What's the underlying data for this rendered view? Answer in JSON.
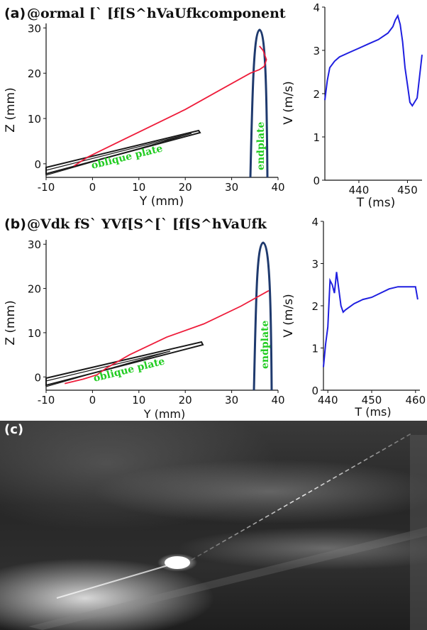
{
  "panel_a": {
    "label": "(a)",
    "title": "@ormal [` [f[S^hVaUfkcomponent",
    "traj": {
      "xlabel": "Y (mm)",
      "ylabel": "Z (mm)",
      "xticks": [
        "-10",
        "0",
        "10",
        "20",
        "30",
        "40"
      ],
      "yticks": [
        "0",
        "10",
        "20",
        "30"
      ],
      "oblique_label": "oblique plate",
      "endplate_label": "endplate"
    },
    "vel": {
      "xlabel": "T (ms)",
      "ylabel": "V (m/s)",
      "xticks": [
        "440",
        "450"
      ],
      "yticks": [
        "0",
        "1",
        "2",
        "3",
        "4"
      ]
    }
  },
  "panel_b": {
    "label": "(b)",
    "title": "@Vdk fS` YVf[S^[` [f[S^hVaUfk",
    "traj": {
      "xlabel": "Y (mm)",
      "ylabel": "Z (mm)",
      "xticks": [
        "-10",
        "0",
        "10",
        "20",
        "30",
        "40"
      ],
      "yticks": [
        "0",
        "10",
        "20",
        "30"
      ],
      "oblique_label": "oblique plate",
      "endplate_label": "endplate"
    },
    "vel": {
      "xlabel": "T (ms)",
      "ylabel": "V (m/s)",
      "xticks": [
        "440",
        "450",
        "460"
      ],
      "yticks": [
        "0",
        "1",
        "2",
        "3",
        "4"
      ]
    }
  },
  "panel_c": {
    "label": "(c)"
  },
  "colors": {
    "trajectory": "#ee1c3a",
    "velocity": "#1f1fe0",
    "endplate": "#1f3a6e",
    "oblique": "#1a1a1a",
    "plate_text": "#22cc22"
  },
  "chart_data": [
    {
      "type": "line",
      "id": "a-trajectory",
      "xlabel": "Y (mm)",
      "ylabel": "Z (mm)",
      "xlim": [
        -10,
        40
      ],
      "ylim": [
        -3,
        31
      ],
      "series": [
        {
          "x": [
            -4,
            -1,
            5,
            12,
            20,
            27,
            34,
            36,
            37,
            37.5,
            36.8,
            36
          ],
          "y": [
            -0.5,
            1.5,
            4.5,
            8,
            12,
            16,
            20,
            20.8,
            21.5,
            23,
            25,
            26
          ]
        }
      ]
    },
    {
      "type": "line",
      "id": "a-velocity",
      "xlabel": "T (ms)",
      "ylabel": "V (m/s)",
      "xlim": [
        433,
        453
      ],
      "ylim": [
        0,
        4
      ],
      "series": [
        {
          "x": [
            433,
            433.5,
            434,
            435,
            436,
            438,
            440,
            442,
            444,
            446,
            447,
            447.5,
            448,
            448.5,
            449,
            449.5,
            450,
            450.5,
            451,
            452,
            453
          ],
          "y": [
            1.85,
            2.3,
            2.6,
            2.75,
            2.85,
            2.95,
            3.05,
            3.15,
            3.25,
            3.4,
            3.55,
            3.7,
            3.8,
            3.6,
            3.2,
            2.6,
            2.2,
            1.8,
            1.72,
            1.9,
            2.9
          ]
        }
      ]
    },
    {
      "type": "line",
      "id": "b-trajectory",
      "xlabel": "Y (mm)",
      "ylabel": "Z (mm)",
      "xlim": [
        -10,
        40
      ],
      "ylim": [
        -3,
        31
      ],
      "series": [
        {
          "x": [
            -6,
            -2,
            1,
            3,
            8,
            16,
            24,
            32,
            38
          ],
          "y": [
            -1.5,
            -0.5,
            0.5,
            2,
            5,
            9,
            12,
            16,
            19.5
          ]
        }
      ]
    },
    {
      "type": "line",
      "id": "b-velocity",
      "xlabel": "T (ms)",
      "ylabel": "V (m/s)",
      "xlim": [
        439,
        461
      ],
      "ylim": [
        0,
        4
      ],
      "series": [
        {
          "x": [
            439,
            439.5,
            440,
            440.5,
            441,
            441.5,
            442,
            442.5,
            443,
            443.5,
            444,
            446,
            448,
            450,
            452,
            454,
            456,
            458,
            460,
            460.5
          ],
          "y": [
            0.55,
            1.1,
            1.5,
            2.6,
            2.5,
            2.3,
            2.8,
            2.4,
            2.0,
            1.85,
            1.9,
            2.05,
            2.15,
            2.2,
            2.3,
            2.4,
            2.45,
            2.45,
            2.45,
            2.15
          ]
        }
      ]
    }
  ]
}
